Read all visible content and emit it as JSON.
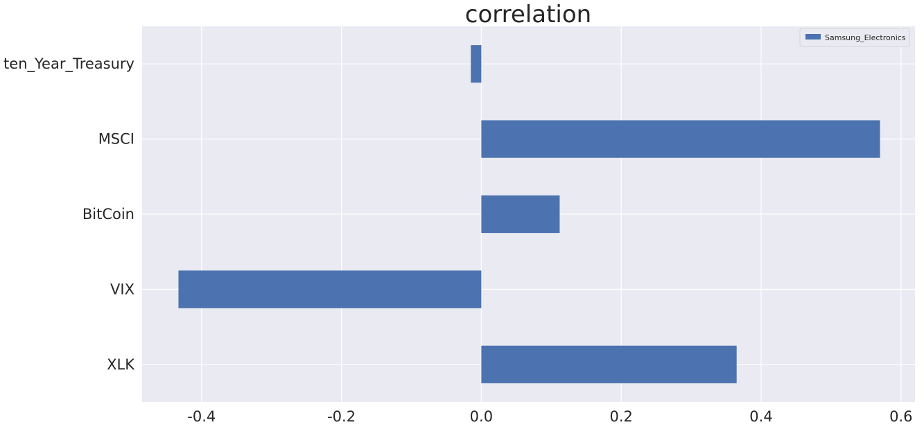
{
  "chart_data": {
    "type": "bar",
    "orientation": "horizontal",
    "title": "correlation",
    "xlabel": "",
    "ylabel": "",
    "categories": [
      "XLK",
      "VIX",
      "BitCoin",
      "MSCI",
      "ten_Year_Treasury"
    ],
    "series": [
      {
        "name": "Samsung_Electronics",
        "values": [
          0.365,
          -0.433,
          0.112,
          0.57,
          -0.015
        ]
      }
    ],
    "xlim": [
      -0.485,
      0.62
    ],
    "xticks": [
      -0.4,
      -0.2,
      0.0,
      0.2,
      0.4,
      0.6
    ],
    "xtick_labels": [
      "-0.4",
      "-0.2",
      "0.0",
      "0.2",
      "0.4",
      "0.6"
    ],
    "grid": true,
    "legend_position": "top-right"
  },
  "colors": {
    "bar": "#4c72b0",
    "plot_background": "#eaeaf2",
    "grid": "#ffffff",
    "text": "#262626"
  }
}
